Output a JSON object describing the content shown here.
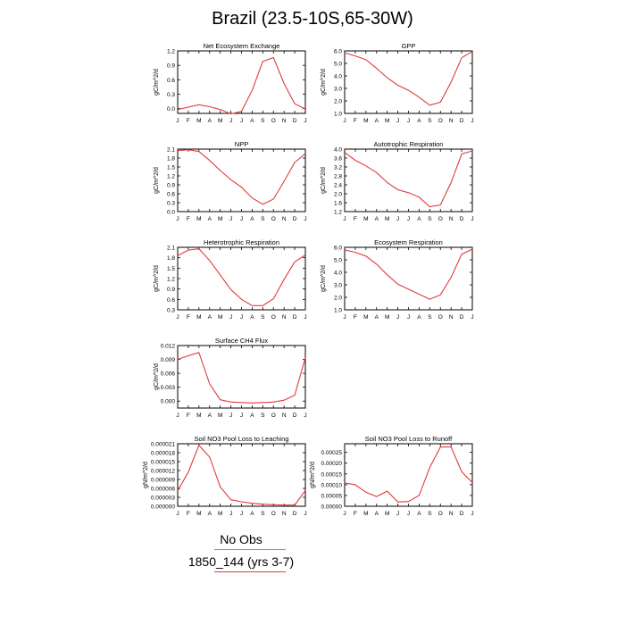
{
  "title": "Brazil (23.5-10S,65-30W)",
  "legend": [
    {
      "label": "No Obs",
      "color": "#7b8fc4"
    },
    {
      "label": "1850_144 (yrs 3-7)",
      "color": "#e23a3a"
    }
  ],
  "months": [
    "J",
    "F",
    "M",
    "A",
    "M",
    "J",
    "J",
    "A",
    "S",
    "O",
    "N",
    "D",
    "J"
  ],
  "chart_data": [
    {
      "type": "line",
      "title": "Net Ecosystem Exchange",
      "ylabel": "gC/m^2/d",
      "x": [
        "J",
        "F",
        "M",
        "A",
        "M",
        "J",
        "J",
        "A",
        "S",
        "O",
        "N",
        "D",
        "J"
      ],
      "ylim": [
        -0.1,
        1.2
      ],
      "yticks": [
        "1.2",
        "0.9",
        "0.6",
        "0.3",
        "0.0"
      ],
      "ytickvals": [
        1.2,
        0.9,
        0.6,
        0.3,
        0.0
      ],
      "series": [
        {
          "values": [
            -0.02,
            0.03,
            0.08,
            0.04,
            -0.02,
            -0.11,
            -0.06,
            0.38,
            0.98,
            1.06,
            0.52,
            0.1,
            -0.01
          ]
        }
      ]
    },
    {
      "type": "line",
      "title": "GPP",
      "ylabel": "gC/m^2/d",
      "x": [
        "J",
        "F",
        "M",
        "A",
        "M",
        "J",
        "J",
        "A",
        "S",
        "O",
        "N",
        "D",
        "J"
      ],
      "ylim": [
        1.0,
        6.0
      ],
      "yticks": [
        "6.0",
        "5.0",
        "4.0",
        "3.0",
        "2.0",
        "1.0"
      ],
      "ytickvals": [
        6,
        5,
        4,
        3,
        2,
        1
      ],
      "series": [
        {
          "values": [
            5.85,
            5.6,
            5.3,
            4.6,
            3.85,
            3.25,
            2.85,
            2.3,
            1.65,
            1.9,
            3.5,
            5.45,
            5.95
          ]
        }
      ]
    },
    {
      "type": "line",
      "title": "NPP",
      "ylabel": "gC/m^2/d",
      "x": [
        "J",
        "F",
        "M",
        "A",
        "M",
        "J",
        "J",
        "A",
        "S",
        "O",
        "N",
        "D",
        "J"
      ],
      "ylim": [
        0.0,
        2.1
      ],
      "yticks": [
        "2.1",
        "1.8",
        "1.5",
        "1.2",
        "0.9",
        "0.6",
        "0.3",
        "0.0"
      ],
      "ytickvals": [
        2.1,
        1.8,
        1.5,
        1.2,
        0.9,
        0.6,
        0.3,
        0.0
      ],
      "series": [
        {
          "values": [
            2.05,
            2.08,
            2.02,
            1.72,
            1.38,
            1.07,
            0.82,
            0.46,
            0.25,
            0.42,
            1.02,
            1.65,
            1.95
          ]
        }
      ]
    },
    {
      "type": "line",
      "title": "Autotrophic Respiration",
      "ylabel": "gC/m^2/d",
      "x": [
        "J",
        "F",
        "M",
        "A",
        "M",
        "J",
        "J",
        "A",
        "S",
        "O",
        "N",
        "D",
        "J"
      ],
      "ylim": [
        1.2,
        4.0
      ],
      "yticks": [
        "4.0",
        "3.6",
        "3.2",
        "2.8",
        "2.4",
        "2.0",
        "1.6",
        "1.2"
      ],
      "ytickvals": [
        4.0,
        3.6,
        3.2,
        2.8,
        2.4,
        2.0,
        1.6,
        1.2
      ],
      "series": [
        {
          "values": [
            3.85,
            3.5,
            3.25,
            2.95,
            2.5,
            2.18,
            2.05,
            1.85,
            1.42,
            1.5,
            2.5,
            3.78,
            3.92
          ]
        }
      ]
    },
    {
      "type": "line",
      "title": "Heterotrophic Respiration",
      "ylabel": "gC/m^2/d",
      "x": [
        "J",
        "F",
        "M",
        "A",
        "M",
        "J",
        "J",
        "A",
        "S",
        "O",
        "N",
        "D",
        "J"
      ],
      "ylim": [
        0.3,
        2.1
      ],
      "yticks": [
        "2.1",
        "1.8",
        "1.5",
        "1.2",
        "0.9",
        "0.6",
        "0.3"
      ],
      "ytickvals": [
        2.1,
        1.8,
        1.5,
        1.2,
        0.9,
        0.6,
        0.3
      ],
      "series": [
        {
          "values": [
            1.86,
            2.02,
            2.06,
            1.72,
            1.3,
            0.88,
            0.6,
            0.42,
            0.42,
            0.62,
            1.18,
            1.68,
            1.88
          ]
        }
      ]
    },
    {
      "type": "line",
      "title": "Ecosystem Respiration",
      "ylabel": "gC/m^2/d",
      "x": [
        "J",
        "F",
        "M",
        "A",
        "M",
        "J",
        "J",
        "A",
        "S",
        "O",
        "N",
        "D",
        "J"
      ],
      "ylim": [
        1.0,
        6.0
      ],
      "yticks": [
        "6.0",
        "5.0",
        "4.0",
        "3.0",
        "2.0",
        "1.0"
      ],
      "ytickvals": [
        6,
        5,
        4,
        3,
        2,
        1
      ],
      "series": [
        {
          "values": [
            5.8,
            5.6,
            5.3,
            4.65,
            3.8,
            3.05,
            2.65,
            2.25,
            1.85,
            2.2,
            3.6,
            5.45,
            5.85
          ]
        }
      ]
    },
    {
      "type": "line",
      "title": "Surface CH4 Flux",
      "ylabel": "gC/m^2/d",
      "x": [
        "J",
        "F",
        "M",
        "A",
        "M",
        "J",
        "J",
        "A",
        "S",
        "O",
        "N",
        "D",
        "J"
      ],
      "ylim": [
        -0.0015,
        0.012
      ],
      "yticks": [
        "0.012",
        "0.009",
        "0.006",
        "0.003",
        "0.000"
      ],
      "ytickvals": [
        0.012,
        0.009,
        0.006,
        0.003,
        0.0
      ],
      "series": [
        {
          "values": [
            0.009,
            0.0098,
            0.0105,
            0.0037,
            0.0003,
            -0.0002,
            -0.0003,
            -0.0004,
            -0.0003,
            -0.0002,
            0.0002,
            0.0013,
            0.0094
          ]
        }
      ]
    },
    {
      "type": "line",
      "title": "Soil NO3 Pool Loss to Leaching",
      "ylabel": "gN/m^2/d",
      "x": [
        "J",
        "F",
        "M",
        "A",
        "M",
        "J",
        "J",
        "A",
        "S",
        "O",
        "N",
        "D",
        "J"
      ],
      "ylim": [
        0.0,
        2.1e-05
      ],
      "yticks": [
        "0.000021",
        "0.000018",
        "0.000015",
        "0.000012",
        "0.000009",
        "0.000006",
        "0.000003",
        "0.000000"
      ],
      "ytickvals": [
        2.1e-05,
        1.8e-05,
        1.5e-05,
        1.2e-05,
        9e-06,
        6e-06,
        3e-06,
        0.0
      ],
      "series": [
        {
          "values": [
            5.2e-06,
            1.15e-05,
            2.05e-05,
            1.65e-05,
            6.5e-06,
            2.2e-06,
            1.5e-06,
            1e-06,
            7e-07,
            5e-07,
            4e-07,
            4e-07,
            5.3e-06
          ]
        }
      ]
    },
    {
      "type": "line",
      "title": "Soil NO3 Pool Loss to Runoff",
      "ylabel": "gN/m^2/d",
      "x": [
        "J",
        "F",
        "M",
        "A",
        "M",
        "J",
        "J",
        "A",
        "S",
        "O",
        "N",
        "D",
        "J"
      ],
      "ylim": [
        0.0,
        0.00029
      ],
      "yticks": [
        "0.00025",
        "0.00020",
        "0.00015",
        "0.00010",
        "0.00005",
        "0.00000"
      ],
      "ytickvals": [
        0.00025,
        0.0002,
        0.00015,
        0.0001,
        5e-05,
        0.0
      ],
      "series": [
        {
          "values": [
            0.000108,
            0.0001,
            6.5e-05,
            4.5e-05,
            7e-05,
            2e-05,
            2.2e-05,
            5e-05,
            0.00018,
            0.000275,
            0.000275,
            0.00016,
            0.00011
          ]
        }
      ]
    }
  ]
}
